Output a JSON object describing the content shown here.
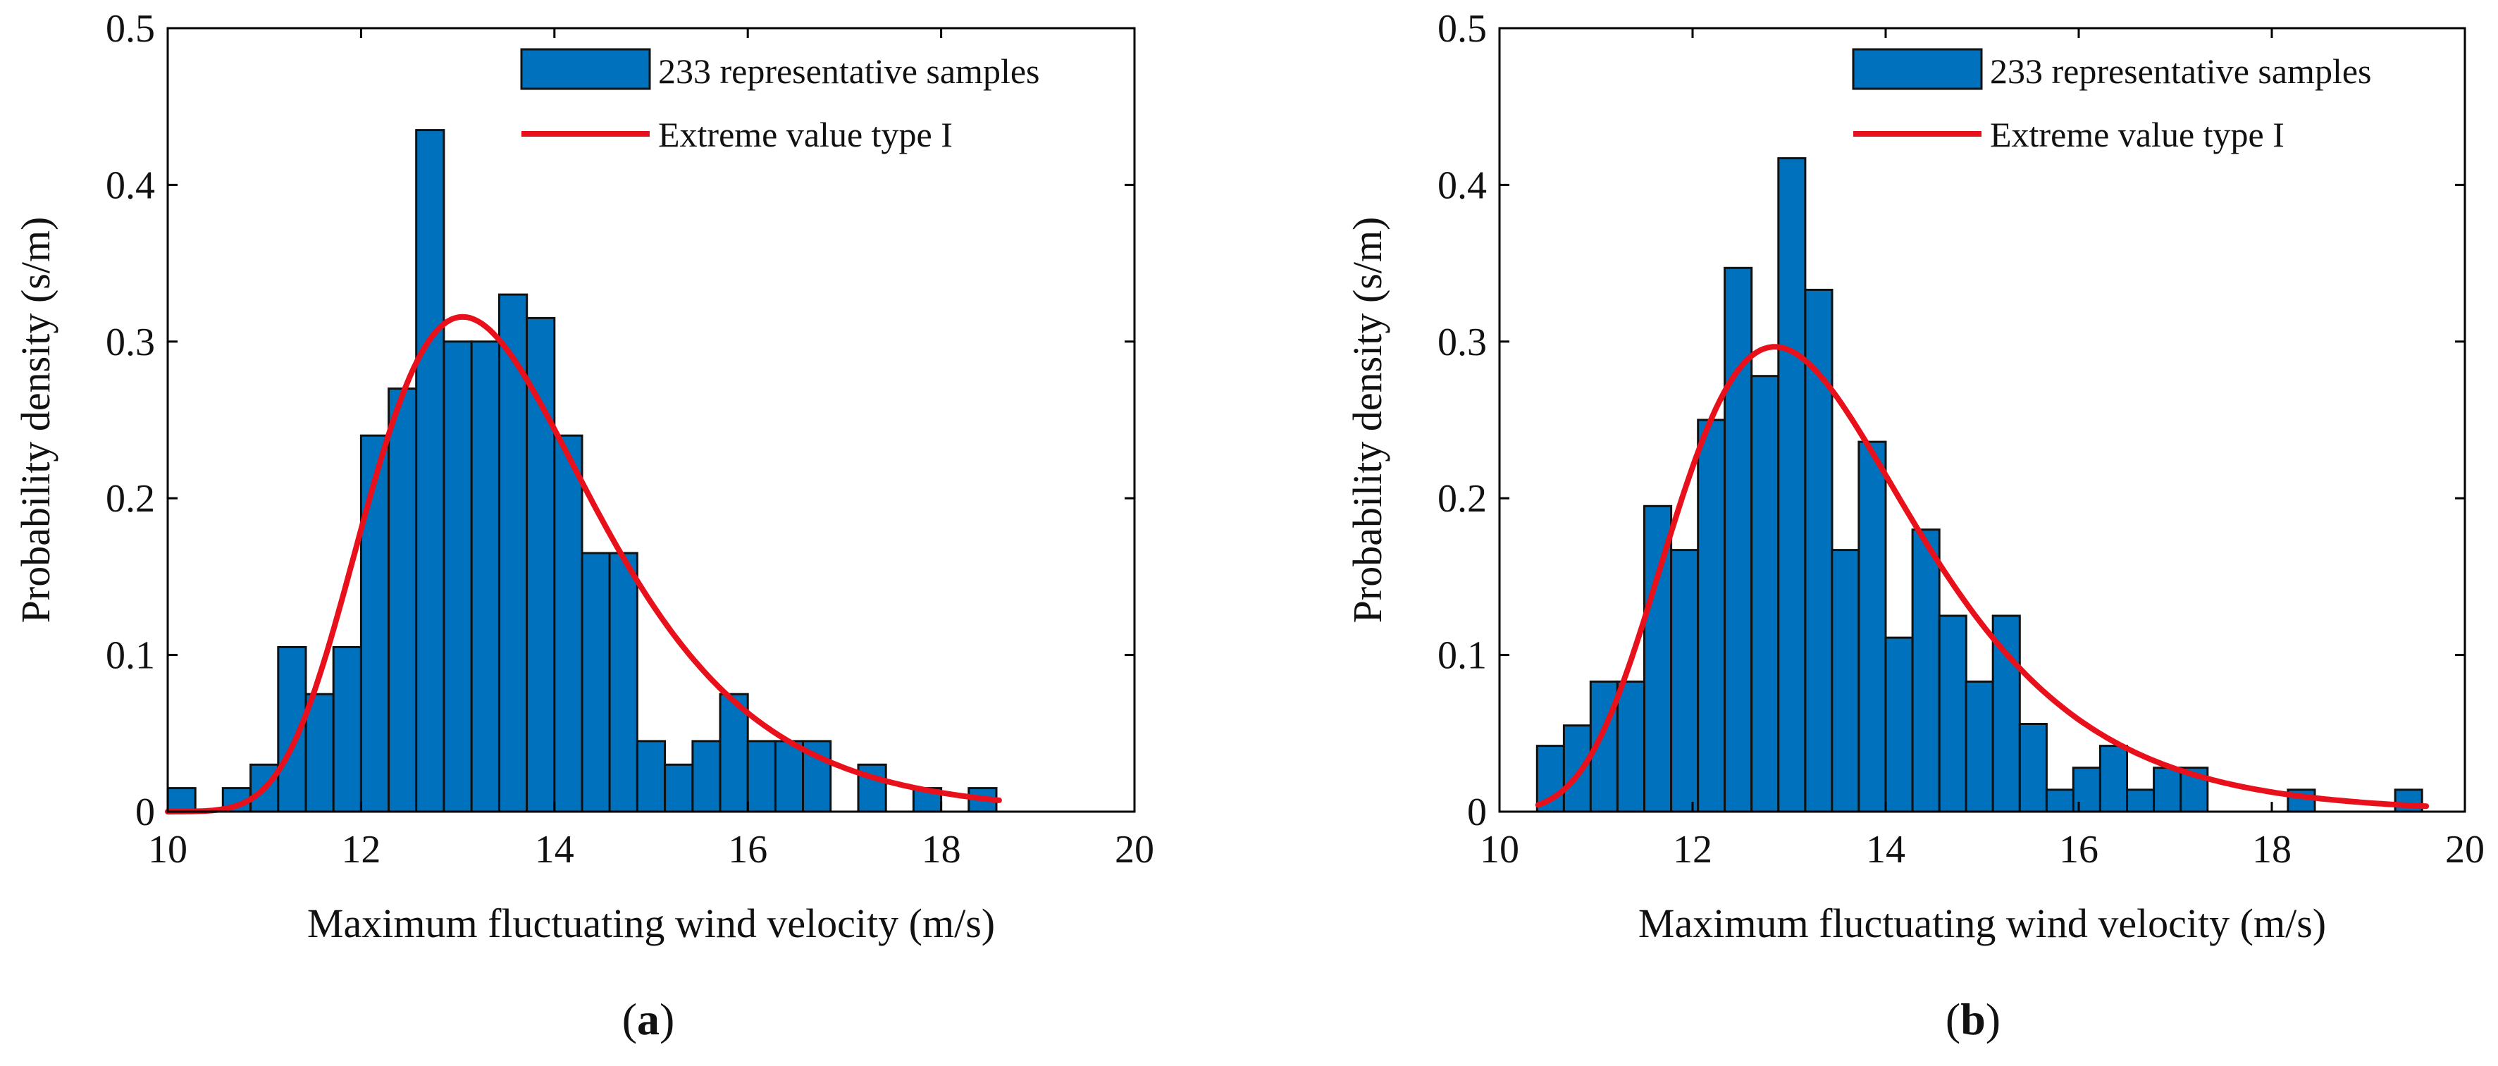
{
  "colors": {
    "bar": "#0072BD",
    "fit": "#E8101A"
  },
  "chart_data": [
    {
      "type": "bar",
      "subtype": "histogram",
      "panel": "a",
      "panel_label": {
        "open": "(",
        "letter": "a",
        "close": ")"
      },
      "title": "",
      "xlabel": "Maximum fluctuating wind velocity (m/s)",
      "ylabel": "Probability density (s/m)",
      "xlim": [
        10,
        20
      ],
      "ylim": [
        0,
        0.5
      ],
      "xticks": [
        10,
        12,
        14,
        16,
        18,
        20
      ],
      "xtick_labels": [
        "10",
        "12",
        "14",
        "16",
        "18",
        "20"
      ],
      "yticks": [
        0,
        0.1,
        0.2,
        0.3,
        0.4,
        0.5
      ],
      "ytick_labels": [
        "0",
        "0.1",
        "0.2",
        "0.3",
        "0.4",
        "0.5"
      ],
      "bin_width": 0.2857,
      "bin_starts": [
        10.0,
        10.571,
        10.857,
        11.143,
        11.429,
        11.714,
        12.0,
        12.286,
        12.571,
        12.857,
        13.143,
        13.429,
        13.714,
        14.0,
        14.286,
        14.571,
        14.857,
        15.143,
        15.429,
        15.714,
        16.0,
        16.286,
        16.571,
        17.143,
        17.714,
        18.286
      ],
      "values": [
        0.015,
        0.015,
        0.03,
        0.105,
        0.075,
        0.105,
        0.24,
        0.27,
        0.435,
        0.3,
        0.3,
        0.33,
        0.315,
        0.24,
        0.165,
        0.165,
        0.045,
        0.03,
        0.045,
        0.075,
        0.045,
        0.045,
        0.045,
        0.03,
        0.015,
        0.015
      ],
      "fit": {
        "name": "Extreme value type I",
        "mu": 13.05,
        "beta": 1.165,
        "x_range": [
          10.0,
          18.6
        ]
      },
      "legend": [
        "233 representative samples",
        "Extreme value type I"
      ],
      "legend_location": "top-right"
    },
    {
      "type": "bar",
      "subtype": "histogram",
      "panel": "b",
      "panel_label": {
        "open": "(",
        "letter": "b",
        "close": ")"
      },
      "title": "",
      "xlabel": "Maximum fluctuating wind velocity (m/s)",
      "ylabel": "Probability density (s/m)",
      "xlim": [
        10,
        20
      ],
      "ylim": [
        0,
        0.5
      ],
      "xticks": [
        10,
        12,
        14,
        16,
        18,
        20
      ],
      "xtick_labels": [
        "10",
        "12",
        "14",
        "16",
        "18",
        "20"
      ],
      "yticks": [
        0,
        0.1,
        0.2,
        0.3,
        0.4,
        0.5
      ],
      "ytick_labels": [
        "0",
        "0.1",
        "0.2",
        "0.3",
        "0.4",
        "0.5"
      ],
      "bin_width": 0.2778,
      "bin_starts": [
        10.389,
        10.667,
        10.944,
        11.222,
        11.5,
        11.778,
        12.056,
        12.333,
        12.611,
        12.889,
        13.167,
        13.444,
        13.722,
        14.0,
        14.278,
        14.556,
        14.833,
        15.111,
        15.389,
        15.667,
        15.944,
        16.222,
        16.5,
        16.778,
        17.056,
        18.167,
        19.278
      ],
      "values": [
        0.042,
        0.055,
        0.083,
        0.083,
        0.195,
        0.167,
        0.25,
        0.347,
        0.278,
        0.417,
        0.333,
        0.167,
        0.236,
        0.111,
        0.18,
        0.125,
        0.083,
        0.125,
        0.056,
        0.014,
        0.028,
        0.042,
        0.014,
        0.028,
        0.028,
        0.014,
        0.014
      ],
      "fit": {
        "name": "Extreme value type I",
        "mu": 12.85,
        "beta": 1.24,
        "x_range": [
          10.4,
          19.6
        ]
      },
      "legend": [
        "233 representative samples",
        "Extreme value type I"
      ],
      "legend_location": "top-right"
    }
  ]
}
